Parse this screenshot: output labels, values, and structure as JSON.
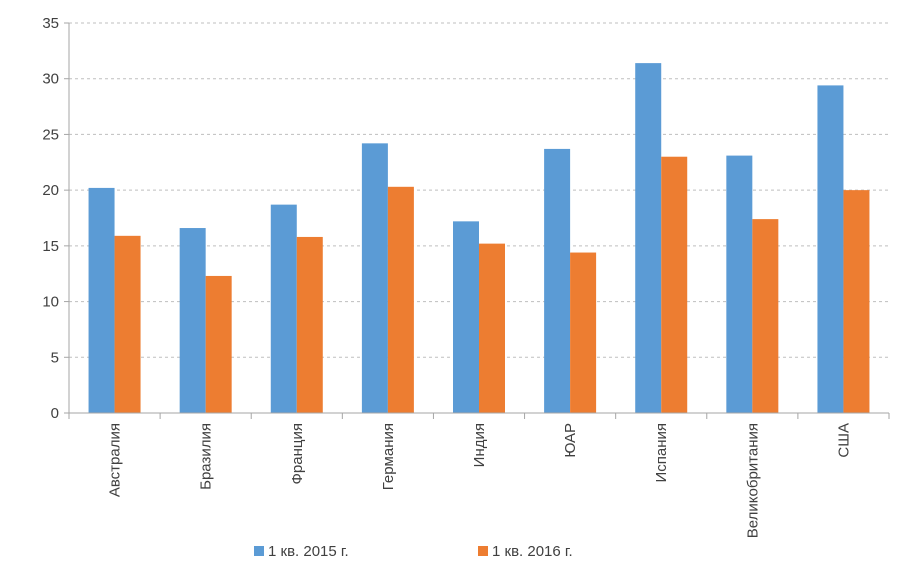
{
  "chart_data": {
    "type": "bar",
    "title": "",
    "xlabel": "",
    "ylabel": "",
    "categories": [
      "Австралия",
      "Бразилия",
      "Франция",
      "Германия",
      "Индия",
      "ЮАР",
      "Испания",
      "Великобритания",
      "США"
    ],
    "series": [
      {
        "name": "1 кв. 2015 г.",
        "color": "#5B9BD5",
        "values": [
          20.2,
          16.6,
          18.7,
          24.2,
          17.2,
          23.7,
          31.4,
          23.1,
          29.4
        ]
      },
      {
        "name": "1 кв. 2016 г.",
        "color": "#ED7D31",
        "values": [
          15.9,
          12.3,
          15.8,
          20.3,
          15.2,
          14.4,
          23.0,
          17.4,
          20.0
        ]
      }
    ],
    "ylim": [
      0,
      35
    ],
    "yticks": [
      "0",
      "5",
      "10",
      "15",
      "20",
      "25",
      "30",
      "35"
    ],
    "grid": true,
    "gridline_style": "dashed",
    "legend_position": "bottom"
  }
}
